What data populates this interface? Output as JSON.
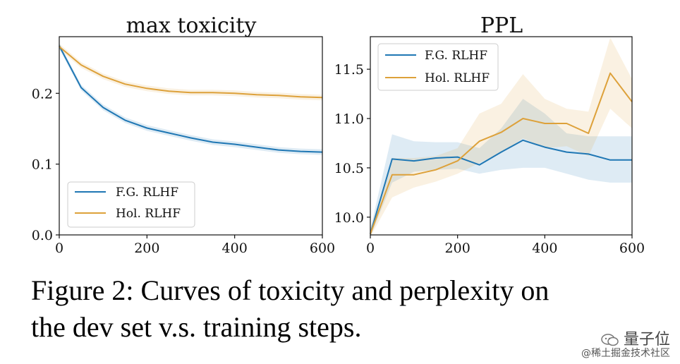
{
  "chart_data": [
    {
      "type": "line",
      "title": "max toxicity",
      "xlabel": "",
      "ylabel": "",
      "xlim": [
        0,
        600
      ],
      "ylim": [
        0.0,
        0.28
      ],
      "xticks": [
        0,
        200,
        400,
        600
      ],
      "yticks": [
        0.0,
        0.1,
        0.2
      ],
      "ytick_labels": [
        "0.0",
        "0.1",
        "0.2"
      ],
      "legend_position": "lower-left",
      "series": [
        {
          "name": "F.G. RLHF",
          "color": "#1f77b4",
          "x": [
            0,
            50,
            100,
            150,
            200,
            250,
            300,
            350,
            400,
            450,
            500,
            550,
            600
          ],
          "values": [
            0.267,
            0.208,
            0.18,
            0.162,
            0.151,
            0.144,
            0.137,
            0.131,
            0.128,
            0.124,
            0.12,
            0.118,
            0.117
          ],
          "band": 0.004
        },
        {
          "name": "Hol. RLHF",
          "color": "#dda13a",
          "x": [
            0,
            50,
            100,
            150,
            200,
            250,
            300,
            350,
            400,
            450,
            500,
            550,
            600
          ],
          "values": [
            0.266,
            0.24,
            0.224,
            0.213,
            0.207,
            0.203,
            0.201,
            0.201,
            0.2,
            0.198,
            0.197,
            0.195,
            0.194
          ],
          "band": 0.004
        }
      ]
    },
    {
      "type": "line",
      "title": "PPL",
      "xlabel": "",
      "ylabel": "",
      "xlim": [
        0,
        600
      ],
      "ylim": [
        9.82,
        11.83
      ],
      "xticks": [
        0,
        200,
        400,
        600
      ],
      "yticks": [
        10.0,
        10.5,
        11.0,
        11.5
      ],
      "ytick_labels": [
        "10.0",
        "10.5",
        "11.0",
        "11.5"
      ],
      "legend_position": "top-left",
      "series": [
        {
          "name": "F.G. RLHF",
          "color": "#1f77b4",
          "x": [
            0,
            50,
            100,
            150,
            200,
            250,
            300,
            350,
            400,
            450,
            500,
            550,
            600
          ],
          "values": [
            9.83,
            10.59,
            10.57,
            10.6,
            10.61,
            10.53,
            10.66,
            10.78,
            10.71,
            10.66,
            10.64,
            10.58,
            10.58
          ],
          "lower": [
            9.8,
            10.35,
            10.46,
            10.48,
            10.49,
            10.44,
            10.48,
            10.5,
            10.5,
            10.44,
            10.38,
            10.35,
            10.35
          ],
          "upper": [
            9.88,
            10.84,
            10.77,
            10.76,
            10.76,
            10.7,
            10.9,
            11.2,
            11.05,
            10.85,
            10.82,
            10.82,
            10.82
          ]
        },
        {
          "name": "Hol. RLHF",
          "color": "#dda13a",
          "x": [
            0,
            50,
            100,
            150,
            200,
            250,
            300,
            350,
            400,
            450,
            500,
            550,
            600
          ],
          "values": [
            9.83,
            10.43,
            10.43,
            10.48,
            10.57,
            10.77,
            10.86,
            11.0,
            10.95,
            10.95,
            10.85,
            11.46,
            11.17
          ],
          "lower": [
            9.8,
            10.2,
            10.3,
            10.36,
            10.44,
            10.55,
            10.65,
            10.8,
            10.7,
            10.72,
            10.62,
            11.1,
            10.9
          ],
          "upper": [
            9.88,
            10.6,
            10.6,
            10.62,
            10.7,
            11.05,
            11.15,
            11.45,
            11.2,
            11.1,
            11.07,
            11.82,
            11.4
          ]
        }
      ]
    }
  ],
  "caption": {
    "line1": "Figure 2: Curves of toxicity and perplexity on",
    "line2": "the dev set v.s. training steps."
  },
  "watermark": {
    "brand": "量子位",
    "site": "@稀土掘金技术社区"
  }
}
